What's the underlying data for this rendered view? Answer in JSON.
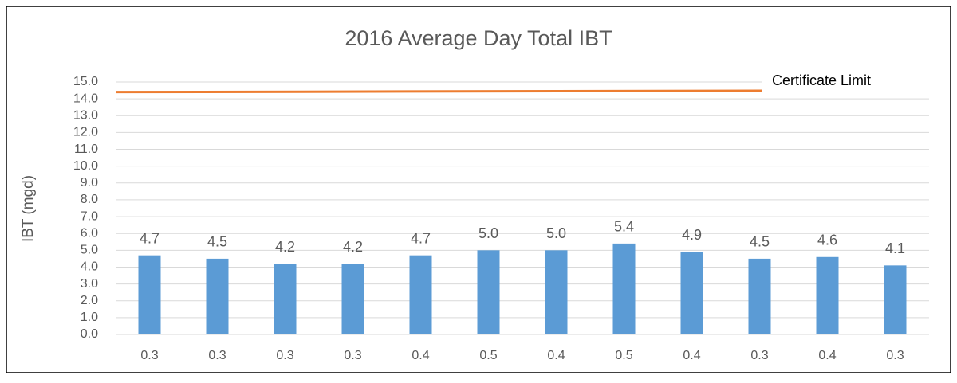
{
  "chart_data": {
    "type": "bar",
    "title": "2016 Average Day Total IBT",
    "y_label": "IBT (mgd)",
    "categories": [
      "0.3",
      "0.3",
      "0.3",
      "0.3",
      "0.4",
      "0.5",
      "0.4",
      "0.5",
      "0.4",
      "0.3",
      "0.4",
      "0.3"
    ],
    "values": [
      4.7,
      4.5,
      4.2,
      4.2,
      4.7,
      5.0,
      5.0,
      5.4,
      4.9,
      4.5,
      4.6,
      4.1
    ],
    "value_labels": [
      "4.7",
      "4.5",
      "4.2",
      "4.2",
      "4.7",
      "5.0",
      "5.0",
      "5.4",
      "4.9",
      "4.5",
      "4.6",
      "4.1"
    ],
    "color": "#5b9bd5",
    "limit_line": {
      "name": "Certificate Limit",
      "color": "#ed7d31",
      "values": [
        14.4,
        14.5
      ]
    },
    "ylim": [
      0,
      15
    ],
    "yticks": [
      {
        "value": 0,
        "label": "0.0"
      },
      {
        "value": 1,
        "label": "1.0"
      },
      {
        "value": 2,
        "label": "2.0"
      },
      {
        "value": 3,
        "label": "3.0"
      },
      {
        "value": 4,
        "label": "4.0"
      },
      {
        "value": 5,
        "label": "5.0"
      },
      {
        "value": 6,
        "label": "6.0"
      },
      {
        "value": 7,
        "label": "7.0"
      },
      {
        "value": 8,
        "label": "8.0"
      },
      {
        "value": 9,
        "label": "9.0"
      },
      {
        "value": 10,
        "label": "10.0"
      },
      {
        "value": 11,
        "label": "11.0"
      },
      {
        "value": 12,
        "label": "12.0"
      },
      {
        "value": 13,
        "label": "13.0"
      },
      {
        "value": 14,
        "label": "14.0"
      },
      {
        "value": 15,
        "label": "15.0"
      }
    ],
    "grid": true
  }
}
